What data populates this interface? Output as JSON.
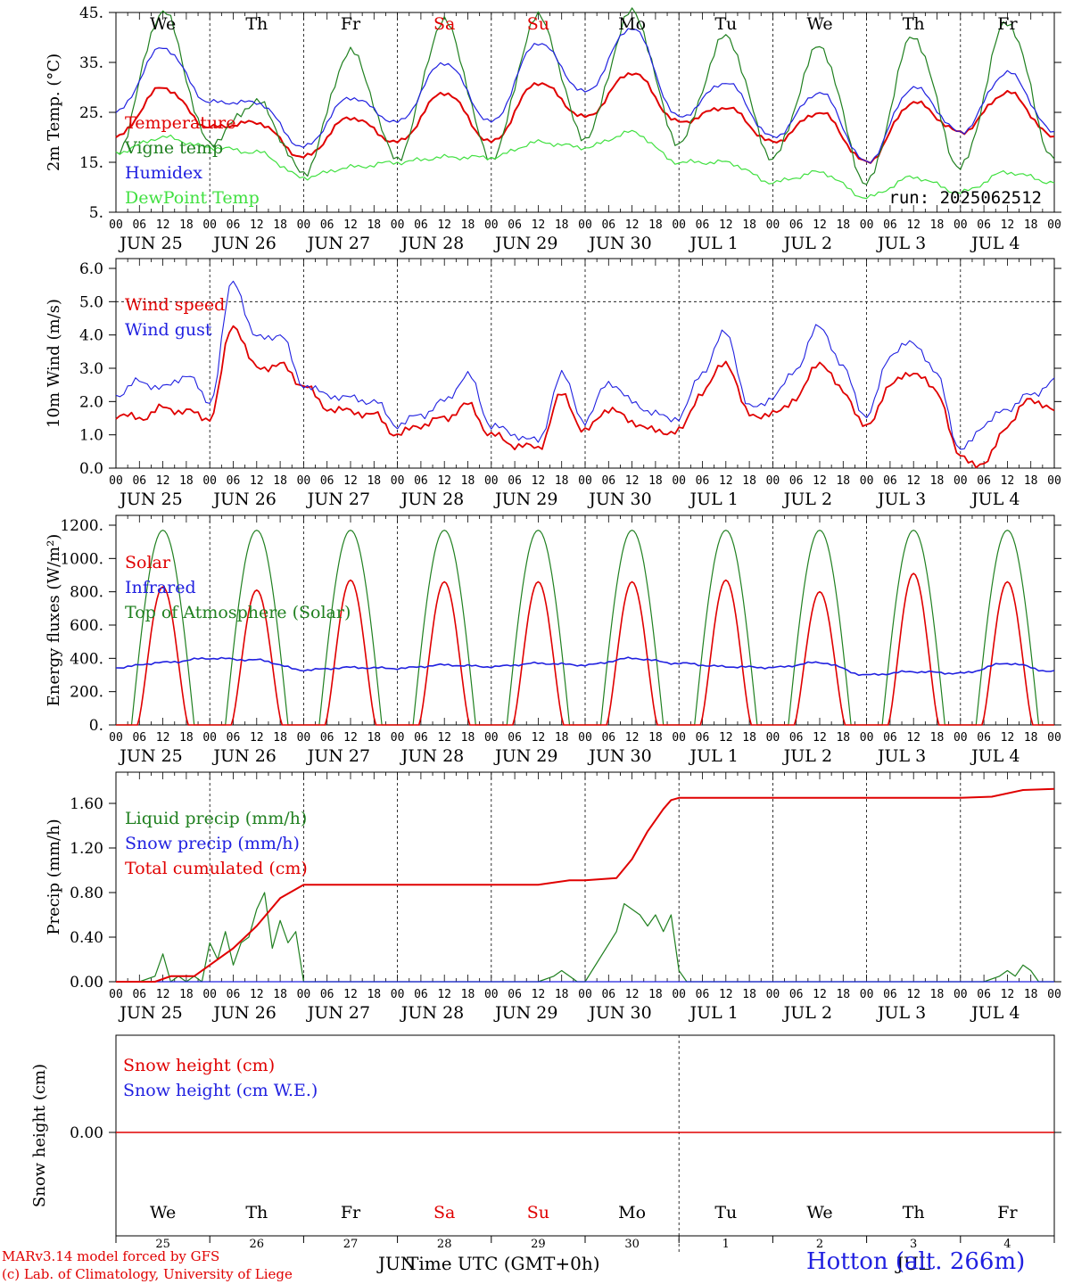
{
  "footer": {
    "credit_line1": "MARv3.14 model forced by GFS",
    "credit_line2": "(c) Lab. of Climatology, University of Liege",
    "x_axis_label": "Time UTC (GMT+0h)",
    "station": "Hotton (alt. 266m)",
    "month_jun": "JUN",
    "month_jul": "JUL"
  },
  "timeline": {
    "days": [
      "JUN 25",
      "JUN 26",
      "JUN 27",
      "JUN 28",
      "JUN 29",
      "JUN 30",
      "JUL  1",
      "JUL  2",
      "JUL  3",
      "JUL  4"
    ],
    "weekdays": [
      "We",
      "Th",
      "Fr",
      "Sa",
      "Su",
      "Mo",
      "Tu",
      "We",
      "Th",
      "Fr"
    ],
    "weekday_colors": [
      "#000000",
      "#000000",
      "#000000",
      "#e00000",
      "#e00000",
      "#000000",
      "#000000",
      "#000000",
      "#000000",
      "#000000"
    ],
    "day_numbers": [
      "25",
      "26",
      "27",
      "28",
      "29",
      "30",
      "1",
      "2",
      "3",
      "4"
    ],
    "hour_ticks": [
      "00",
      "06",
      "12",
      "18"
    ],
    "final_hour": "00"
  },
  "chart_data": [
    {
      "type": "line",
      "id": "temperature",
      "ylabel": "2m Temp. (°C)",
      "ylim": [
        5,
        45
      ],
      "yticks": [
        5,
        15,
        25,
        35,
        45
      ],
      "ytick_labels": [
        "5.",
        "15.",
        "25.",
        "35.",
        "45."
      ],
      "annotation": "run: 2025062512",
      "x_hours": [
        0,
        12,
        24,
        36,
        48,
        60,
        72,
        84,
        96,
        108,
        120,
        132,
        144,
        156,
        168,
        180,
        192,
        204,
        216,
        228,
        240
      ],
      "series": [
        {
          "name": "Temperature",
          "color": "#e00000",
          "values": [
            20,
            30,
            22,
            23,
            16,
            24,
            19,
            29,
            19,
            31,
            24,
            33,
            23,
            26,
            19,
            25,
            15,
            27,
            21,
            29,
            20
          ]
        },
        {
          "name": "Vigne temp",
          "color": "#208020",
          "values": [
            17,
            45,
            19,
            27,
            13,
            37,
            16,
            43,
            16,
            44,
            20,
            45,
            19,
            40,
            16,
            38,
            11,
            40,
            14,
            43,
            16
          ]
        },
        {
          "name": "Humidex",
          "color": "#2020e0",
          "values": [
            25,
            38,
            27,
            27,
            18,
            28,
            23,
            35,
            23,
            39,
            29,
            42,
            24,
            31,
            20,
            29,
            15,
            30,
            21,
            33,
            21
          ]
        },
        {
          "name": "DewPoint Temp",
          "color": "#40e040",
          "values": [
            17,
            20,
            18,
            17,
            12,
            14,
            15,
            16,
            16,
            19,
            18,
            21,
            15,
            15,
            11,
            13,
            8,
            12,
            9,
            13,
            11
          ]
        }
      ]
    },
    {
      "type": "line",
      "id": "wind",
      "ylabel": "10m Wind (m/s)",
      "ylim": [
        0,
        6
      ],
      "yticks": [
        0,
        1,
        2,
        3,
        4,
        5,
        6
      ],
      "ytick_labels": [
        "0.0",
        "1.0",
        "2.0",
        "3.0",
        "4.0",
        "5.0",
        "6.0"
      ],
      "reference_line": 5.0,
      "x_hours": [
        0,
        6,
        12,
        18,
        24,
        30,
        36,
        42,
        48,
        54,
        60,
        66,
        72,
        78,
        84,
        90,
        96,
        102,
        108,
        114,
        120,
        126,
        132,
        138,
        144,
        150,
        156,
        162,
        168,
        174,
        180,
        186,
        192,
        198,
        204,
        210,
        216,
        222,
        228,
        234,
        240
      ],
      "series": [
        {
          "name": "Wind speed",
          "color": "#e00000",
          "values": [
            1.6,
            1.5,
            1.8,
            1.7,
            1.5,
            4.3,
            3.0,
            3.1,
            2.5,
            1.8,
            1.7,
            1.6,
            1.0,
            1.3,
            1.5,
            1.9,
            1.0,
            0.7,
            0.6,
            2.2,
            1.1,
            1.8,
            1.4,
            1.1,
            1.1,
            2.3,
            3.2,
            1.6,
            1.6,
            2.1,
            3.2,
            2.3,
            1.2,
            2.5,
            2.9,
            2.3,
            0.3,
            0.1,
            1.3,
            2.1,
            1.7
          ]
        },
        {
          "name": "Wind gust",
          "color": "#2020e0",
          "values": [
            2.2,
            2.6,
            2.4,
            2.8,
            2.0,
            5.6,
            3.9,
            4.0,
            2.5,
            2.2,
            2.1,
            2.0,
            1.3,
            1.6,
            2.0,
            2.8,
            1.3,
            1.0,
            0.8,
            2.8,
            1.4,
            2.6,
            2.0,
            1.6,
            1.5,
            2.9,
            4.1,
            1.8,
            2.1,
            3.0,
            4.3,
            3.0,
            1.5,
            3.4,
            3.8,
            2.8,
            0.5,
            1.3,
            1.8,
            2.2,
            2.6
          ]
        }
      ]
    },
    {
      "type": "line",
      "id": "energy",
      "ylabel": "Energy fluxes (W/m²)",
      "ylim": [
        0,
        1200
      ],
      "yticks": [
        0,
        200,
        400,
        600,
        800,
        1000,
        1200
      ],
      "ytick_labels": [
        "0.",
        "200.",
        "400.",
        "600.",
        "800.",
        "1000.",
        "1200."
      ],
      "day_peaks_solar": [
        830,
        810,
        870,
        860,
        860,
        860,
        870,
        800,
        910,
        860
      ],
      "toa_peak": 1170,
      "infrared_x_hours": [
        0,
        12,
        24,
        36,
        48,
        60,
        72,
        84,
        96,
        108,
        120,
        132,
        144,
        156,
        168,
        180,
        192,
        204,
        216,
        228,
        240
      ],
      "infrared_values": [
        345,
        375,
        400,
        390,
        330,
        345,
        340,
        360,
        350,
        370,
        360,
        400,
        370,
        350,
        345,
        375,
        300,
        320,
        310,
        370,
        320
      ],
      "series": [
        {
          "name": "Solar",
          "color": "#e00000"
        },
        {
          "name": "Infrared",
          "color": "#2020e0"
        },
        {
          "name": "Top of Atmosphere (Solar)",
          "color": "#208020"
        }
      ]
    },
    {
      "type": "line",
      "id": "precip",
      "ylabel": "Precip (mm/h)",
      "ylim": [
        0,
        1.8
      ],
      "yticks": [
        0,
        0.4,
        0.8,
        1.2,
        1.6
      ],
      "ytick_labels": [
        "0.00",
        "0.40",
        "0.80",
        "1.20",
        "1.60"
      ],
      "series": [
        {
          "name": "Liquid precip (mm/h)",
          "color": "#208020",
          "x_hours": [
            0,
            6,
            10,
            12,
            14,
            16,
            18,
            20,
            22,
            24,
            26,
            28,
            30,
            32,
            34,
            36,
            38,
            40,
            42,
            44,
            46,
            48,
            60,
            108,
            112,
            114,
            116,
            118,
            120,
            128,
            130,
            134,
            136,
            138,
            140,
            142,
            144,
            146,
            150,
            222,
            226,
            228,
            230,
            232,
            234,
            236,
            240
          ],
          "values": [
            0,
            0,
            0.05,
            0.25,
            0,
            0.05,
            0,
            0.05,
            0,
            0.35,
            0.2,
            0.45,
            0.15,
            0.35,
            0.4,
            0.65,
            0.8,
            0.3,
            0.55,
            0.35,
            0.45,
            0,
            0,
            0,
            0.05,
            0.1,
            0.05,
            0,
            0,
            0.45,
            0.7,
            0.6,
            0.5,
            0.6,
            0.45,
            0.6,
            0.1,
            0,
            0,
            0,
            0.05,
            0.1,
            0.05,
            0.15,
            0.1,
            0,
            0
          ]
        },
        {
          "name": "Snow precip (mm/h)",
          "color": "#2020e0",
          "x_hours": [
            0,
            240
          ],
          "values": [
            0,
            0
          ]
        },
        {
          "name": "Total cumulated (cm)",
          "color": "#e00000",
          "x_hours": [
            0,
            10,
            14,
            20,
            24,
            30,
            36,
            42,
            48,
            54,
            108,
            112,
            116,
            120,
            128,
            132,
            136,
            140,
            142,
            144,
            216,
            224,
            232,
            240
          ],
          "values": [
            0,
            0,
            0.05,
            0.05,
            0.15,
            0.3,
            0.5,
            0.75,
            0.87,
            0.87,
            0.87,
            0.89,
            0.91,
            0.91,
            0.93,
            1.1,
            1.35,
            1.55,
            1.63,
            1.65,
            1.65,
            1.66,
            1.72,
            1.73
          ]
        }
      ]
    },
    {
      "type": "line",
      "id": "snow",
      "ylabel": "Snow height (cm)",
      "yticks": [
        0
      ],
      "ytick_labels": [
        "0.00"
      ],
      "series": [
        {
          "name": "Snow height (cm)",
          "color": "#e00000",
          "x_hours": [
            0,
            240
          ],
          "values": [
            0,
            0
          ]
        },
        {
          "name": "Snow height (cm W.E.)",
          "color": "#2020e0",
          "x_hours": [
            0,
            240
          ],
          "values": [
            0,
            0
          ]
        }
      ]
    }
  ]
}
